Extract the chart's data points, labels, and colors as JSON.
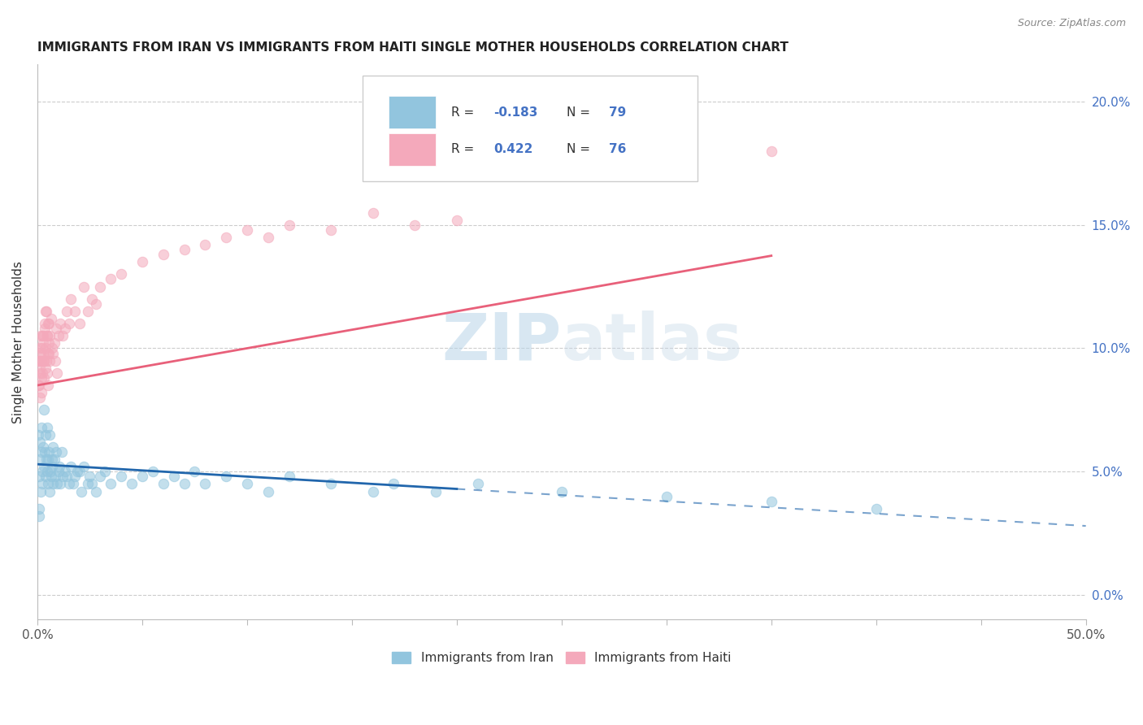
{
  "title": "IMMIGRANTS FROM IRAN VS IMMIGRANTS FROM HAITI SINGLE MOTHER HOUSEHOLDS CORRELATION CHART",
  "source_text": "Source: ZipAtlas.com",
  "ylabel": "Single Mother Households",
  "ytick_values": [
    0.0,
    5.0,
    10.0,
    15.0,
    20.0
  ],
  "ytick_labels": [
    "0.0%",
    "5.0%",
    "10.0%",
    "15.0%",
    "20.0%"
  ],
  "xmin": 0.0,
  "xmax": 50.0,
  "ymin": -1.0,
  "ymax": 21.5,
  "watermark": "ZIPatlas",
  "legend_iran_label": "Immigrants from Iran",
  "legend_haiti_label": "Immigrants from Haiti",
  "iran_color": "#92c5de",
  "haiti_color": "#f4a9bb",
  "iran_regression_color": "#2166ac",
  "haiti_regression_color": "#e8607a",
  "iran_scatter_x": [
    0.05,
    0.08,
    0.1,
    0.12,
    0.15,
    0.18,
    0.2,
    0.22,
    0.25,
    0.28,
    0.3,
    0.32,
    0.35,
    0.38,
    0.4,
    0.42,
    0.45,
    0.48,
    0.5,
    0.52,
    0.55,
    0.58,
    0.6,
    0.62,
    0.65,
    0.68,
    0.7,
    0.72,
    0.75,
    0.8,
    0.85,
    0.9,
    0.95,
    1.0,
    1.05,
    1.1,
    1.15,
    1.2,
    1.3,
    1.4,
    1.5,
    1.6,
    1.7,
    1.8,
    1.9,
    2.0,
    2.1,
    2.2,
    2.4,
    2.5,
    2.6,
    2.8,
    3.0,
    3.2,
    3.5,
    4.0,
    4.5,
    5.0,
    5.5,
    6.0,
    6.5,
    7.0,
    7.5,
    8.0,
    9.0,
    10.0,
    11.0,
    12.0,
    14.0,
    16.0,
    17.0,
    19.0,
    21.0,
    25.0,
    30.0,
    35.0,
    40.0,
    0.06,
    0.09
  ],
  "iran_scatter_y": [
    6.5,
    4.8,
    5.5,
    6.2,
    4.2,
    5.8,
    6.8,
    5.0,
    4.5,
    6.0,
    5.2,
    7.5,
    5.8,
    4.8,
    6.5,
    5.5,
    5.0,
    6.8,
    5.5,
    4.5,
    5.8,
    4.2,
    6.5,
    5.0,
    4.8,
    5.5,
    5.2,
    6.0,
    4.5,
    5.5,
    4.8,
    5.8,
    4.5,
    5.0,
    5.2,
    4.5,
    5.8,
    4.8,
    5.0,
    4.8,
    4.5,
    5.2,
    4.5,
    4.8,
    5.0,
    5.0,
    4.2,
    5.2,
    4.5,
    4.8,
    4.5,
    4.2,
    4.8,
    5.0,
    4.5,
    4.8,
    4.5,
    4.8,
    5.0,
    4.5,
    4.8,
    4.5,
    5.0,
    4.5,
    4.8,
    4.5,
    4.2,
    4.8,
    4.5,
    4.2,
    4.5,
    4.2,
    4.5,
    4.2,
    4.0,
    3.8,
    3.5,
    3.5,
    3.2
  ],
  "haiti_scatter_x": [
    0.05,
    0.08,
    0.1,
    0.12,
    0.15,
    0.18,
    0.2,
    0.22,
    0.25,
    0.28,
    0.3,
    0.32,
    0.35,
    0.38,
    0.4,
    0.42,
    0.45,
    0.48,
    0.5,
    0.52,
    0.55,
    0.58,
    0.6,
    0.65,
    0.7,
    0.75,
    0.8,
    0.85,
    0.9,
    0.95,
    1.0,
    1.1,
    1.2,
    1.3,
    1.4,
    1.5,
    1.6,
    1.8,
    2.0,
    2.2,
    2.4,
    2.6,
    2.8,
    3.0,
    3.5,
    4.0,
    5.0,
    6.0,
    7.0,
    8.0,
    9.0,
    10.0,
    11.0,
    12.0,
    14.0,
    16.0,
    18.0,
    20.0,
    0.07,
    0.09,
    0.11,
    0.13,
    0.16,
    0.19,
    0.23,
    0.26,
    0.29,
    0.33,
    0.36,
    0.39,
    0.43,
    0.46,
    0.49,
    0.53,
    0.56,
    35.0
  ],
  "haiti_scatter_y": [
    8.5,
    9.5,
    8.0,
    9.2,
    9.8,
    8.2,
    8.8,
    10.5,
    9.0,
    10.2,
    9.5,
    8.8,
    10.8,
    9.2,
    11.5,
    9.5,
    9.0,
    10.5,
    8.5,
    11.0,
    9.8,
    10.5,
    9.5,
    11.2,
    10.0,
    9.8,
    10.2,
    9.5,
    10.8,
    9.0,
    10.5,
    11.0,
    10.5,
    10.8,
    11.5,
    11.0,
    12.0,
    11.5,
    11.0,
    12.5,
    11.5,
    12.0,
    11.8,
    12.5,
    12.8,
    13.0,
    13.5,
    13.8,
    14.0,
    14.2,
    14.5,
    14.8,
    14.5,
    15.0,
    14.8,
    15.5,
    15.0,
    15.2,
    9.5,
    8.5,
    10.0,
    9.0,
    10.5,
    9.5,
    10.0,
    9.8,
    10.5,
    9.5,
    11.0,
    10.0,
    11.5,
    10.5,
    9.8,
    10.2,
    11.0,
    18.0
  ],
  "iran_reg_x0": 0.0,
  "iran_reg_y0": 5.3,
  "iran_reg_x1": 50.0,
  "iran_reg_y1": 2.8,
  "iran_solid_end": 20.0,
  "haiti_reg_x0": 0.0,
  "haiti_reg_y0": 8.5,
  "haiti_reg_x1": 50.0,
  "haiti_reg_y1": 16.0,
  "haiti_solid_end": 35.0
}
